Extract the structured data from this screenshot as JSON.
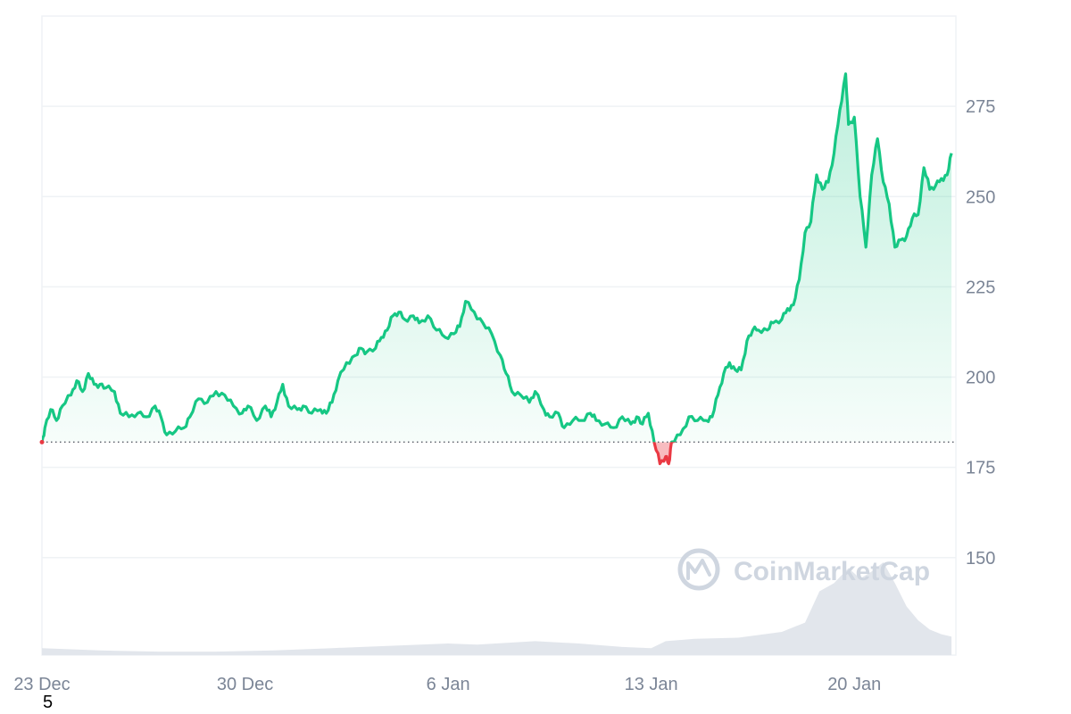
{
  "chart_data": {
    "type": "area",
    "x_ticks": [
      "23 Dec",
      "30 Dec",
      "6 Jan",
      "13 Jan",
      "20 Jan"
    ],
    "x_tick_days": [
      0,
      7,
      14,
      21,
      28
    ],
    "x_range_days": [
      0,
      31.5
    ],
    "y_ticks": [
      150,
      175,
      200,
      225,
      250,
      275
    ],
    "ylim": [
      123,
      300
    ],
    "baseline": 182,
    "grid": true,
    "colors": {
      "up": "#16c784",
      "down": "#ea3943",
      "fill_top": "#c9f2df",
      "volume": "#dfe3ea",
      "grid": "#eff2f5",
      "tick": "#7b8596"
    },
    "series": [
      {
        "values": [
          [
            0.0,
            182
          ],
          [
            0.1,
            186
          ],
          [
            0.3,
            191
          ],
          [
            0.5,
            188
          ],
          [
            0.7,
            192
          ],
          [
            1.0,
            195
          ],
          [
            1.2,
            199
          ],
          [
            1.4,
            196
          ],
          [
            1.6,
            201
          ],
          [
            1.8,
            198
          ],
          [
            2.0,
            198
          ],
          [
            2.2,
            197
          ],
          [
            2.5,
            196
          ],
          [
            2.7,
            190
          ],
          [
            3.0,
            189
          ],
          [
            3.3,
            190
          ],
          [
            3.6,
            189
          ],
          [
            3.9,
            192
          ],
          [
            4.1,
            189
          ],
          [
            4.3,
            184
          ],
          [
            4.6,
            185
          ],
          [
            4.9,
            186
          ],
          [
            5.1,
            189
          ],
          [
            5.4,
            194
          ],
          [
            5.7,
            193
          ],
          [
            6.0,
            196
          ],
          [
            6.3,
            195
          ],
          [
            6.6,
            192
          ],
          [
            6.9,
            190
          ],
          [
            7.1,
            192
          ],
          [
            7.4,
            188
          ],
          [
            7.7,
            192
          ],
          [
            7.9,
            189
          ],
          [
            8.1,
            193
          ],
          [
            8.3,
            198
          ],
          [
            8.5,
            192
          ],
          [
            8.8,
            191
          ],
          [
            9.0,
            192
          ],
          [
            9.3,
            190
          ],
          [
            9.6,
            191
          ],
          [
            9.8,
            190
          ],
          [
            10.0,
            193
          ],
          [
            10.2,
            199
          ],
          [
            10.5,
            204
          ],
          [
            10.8,
            206
          ],
          [
            11.0,
            208
          ],
          [
            11.2,
            207
          ],
          [
            11.5,
            208
          ],
          [
            11.7,
            211
          ],
          [
            11.9,
            213
          ],
          [
            12.1,
            217
          ],
          [
            12.3,
            218
          ],
          [
            12.5,
            216
          ],
          [
            12.8,
            217
          ],
          [
            13.0,
            215
          ],
          [
            13.3,
            217
          ],
          [
            13.6,
            213
          ],
          [
            13.9,
            211
          ],
          [
            14.2,
            212
          ],
          [
            14.4,
            214
          ],
          [
            14.6,
            221
          ],
          [
            14.9,
            218
          ],
          [
            15.2,
            215
          ],
          [
            15.5,
            212
          ],
          [
            15.8,
            206
          ],
          [
            16.0,
            201
          ],
          [
            16.2,
            196
          ],
          [
            16.5,
            195
          ],
          [
            16.8,
            193
          ],
          [
            17.0,
            196
          ],
          [
            17.3,
            191
          ],
          [
            17.5,
            189
          ],
          [
            17.8,
            190
          ],
          [
            18.0,
            186
          ],
          [
            18.3,
            188
          ],
          [
            18.6,
            188
          ],
          [
            18.9,
            190
          ],
          [
            19.1,
            188
          ],
          [
            19.4,
            187
          ],
          [
            19.7,
            186
          ],
          [
            20.0,
            189
          ],
          [
            20.3,
            187
          ],
          [
            20.5,
            189
          ],
          [
            20.7,
            187
          ],
          [
            20.9,
            190
          ],
          [
            21.1,
            182
          ],
          [
            21.3,
            176
          ],
          [
            21.5,
            178
          ],
          [
            21.6,
            176
          ],
          [
            21.7,
            182
          ],
          [
            22.0,
            184
          ],
          [
            22.3,
            189
          ],
          [
            22.6,
            188
          ],
          [
            22.9,
            188
          ],
          [
            23.1,
            189
          ],
          [
            23.3,
            195
          ],
          [
            23.5,
            201
          ],
          [
            23.7,
            204
          ],
          [
            23.9,
            202
          ],
          [
            24.1,
            202
          ],
          [
            24.3,
            210
          ],
          [
            24.5,
            213
          ],
          [
            24.7,
            213
          ],
          [
            25.0,
            213
          ],
          [
            25.2,
            215
          ],
          [
            25.5,
            216
          ],
          [
            25.7,
            219
          ],
          [
            25.9,
            220
          ],
          [
            26.1,
            227
          ],
          [
            26.3,
            240
          ],
          [
            26.5,
            243
          ],
          [
            26.7,
            256
          ],
          [
            26.9,
            252
          ],
          [
            27.1,
            254
          ],
          [
            27.3,
            262
          ],
          [
            27.5,
            274
          ],
          [
            27.7,
            284
          ],
          [
            27.8,
            270
          ],
          [
            28.0,
            272
          ],
          [
            28.2,
            250
          ],
          [
            28.4,
            236
          ],
          [
            28.6,
            256
          ],
          [
            28.8,
            266
          ],
          [
            29.0,
            254
          ],
          [
            29.2,
            248
          ],
          [
            29.4,
            236
          ],
          [
            29.6,
            238
          ],
          [
            29.8,
            239
          ],
          [
            30.0,
            244
          ],
          [
            30.2,
            245
          ],
          [
            30.4,
            258
          ],
          [
            30.6,
            252
          ],
          [
            30.8,
            253
          ],
          [
            31.0,
            255
          ],
          [
            31.2,
            256
          ],
          [
            31.35,
            262
          ]
        ]
      }
    ],
    "volume": [
      [
        0.0,
        0.06
      ],
      [
        2.0,
        0.04
      ],
      [
        4.0,
        0.03
      ],
      [
        6.0,
        0.03
      ],
      [
        8.0,
        0.04
      ],
      [
        10.0,
        0.06
      ],
      [
        12.0,
        0.08
      ],
      [
        14.0,
        0.1
      ],
      [
        15.0,
        0.09
      ],
      [
        17.0,
        0.12
      ],
      [
        18.5,
        0.1
      ],
      [
        20.0,
        0.07
      ],
      [
        21.0,
        0.06
      ],
      [
        21.5,
        0.12
      ],
      [
        22.5,
        0.14
      ],
      [
        24.0,
        0.15
      ],
      [
        25.5,
        0.2
      ],
      [
        26.3,
        0.28
      ],
      [
        26.8,
        0.55
      ],
      [
        27.3,
        0.62
      ],
      [
        27.8,
        0.75
      ],
      [
        28.2,
        0.66
      ],
      [
        28.6,
        0.72
      ],
      [
        29.0,
        0.8
      ],
      [
        29.4,
        0.62
      ],
      [
        29.8,
        0.42
      ],
      [
        30.2,
        0.3
      ],
      [
        30.6,
        0.22
      ],
      [
        31.0,
        0.18
      ],
      [
        31.35,
        0.16
      ]
    ]
  },
  "watermark": {
    "brand": "CoinMarketCap",
    "icon": "coinmarketcap-logo-icon"
  },
  "footer": {
    "label": "5"
  }
}
